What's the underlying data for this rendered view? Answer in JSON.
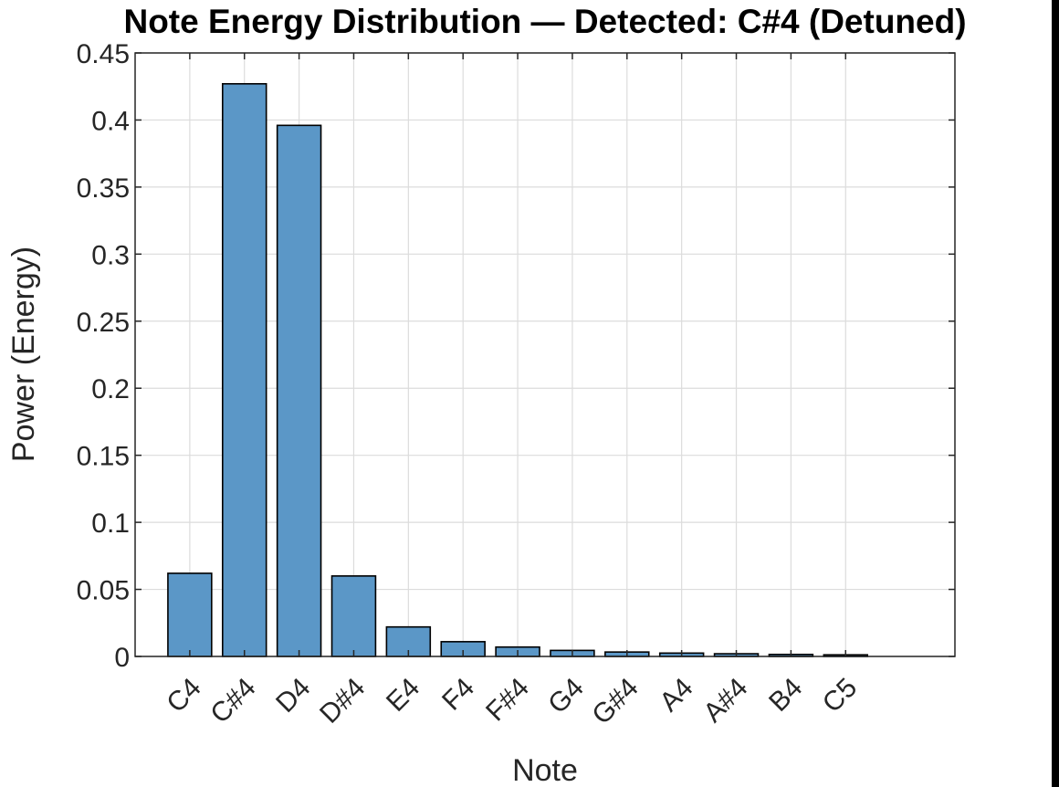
{
  "chart_data": {
    "type": "bar",
    "title": "Note Energy Distribution — Detected: C#4 (Detuned)",
    "xlabel": "Note",
    "ylabel": "Power (Energy)",
    "categories": [
      "C4",
      "C#4",
      "D4",
      "D#4",
      "E4",
      "F4",
      "F#4",
      "G4",
      "G#4",
      "A4",
      "A#4",
      "B4",
      "C5"
    ],
    "values": [
      0.062,
      0.427,
      0.396,
      0.06,
      0.022,
      0.011,
      0.007,
      0.0045,
      0.0033,
      0.0025,
      0.002,
      0.0015,
      0.0012
    ],
    "ylim": [
      0,
      0.45
    ],
    "yticks": [
      0,
      0.05,
      0.1,
      0.15,
      0.2,
      0.25,
      0.3,
      0.35,
      0.4,
      0.45
    ],
    "ytick_labels": [
      "0",
      "0.05",
      "0.1",
      "0.15",
      "0.2",
      "0.25",
      "0.3",
      "0.35",
      "0.4",
      "0.45"
    ],
    "grid": true,
    "bar_color": "#5b97c7",
    "edge_color": "#000000"
  }
}
